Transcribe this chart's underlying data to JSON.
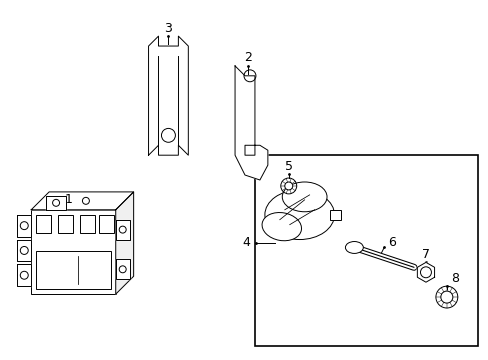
{
  "background_color": "#ffffff",
  "line_color": "#000000",
  "text_color": "#000000",
  "figure_width": 4.89,
  "figure_height": 3.6,
  "dpi": 100,
  "font_size": 9,
  "lw": 0.7
}
